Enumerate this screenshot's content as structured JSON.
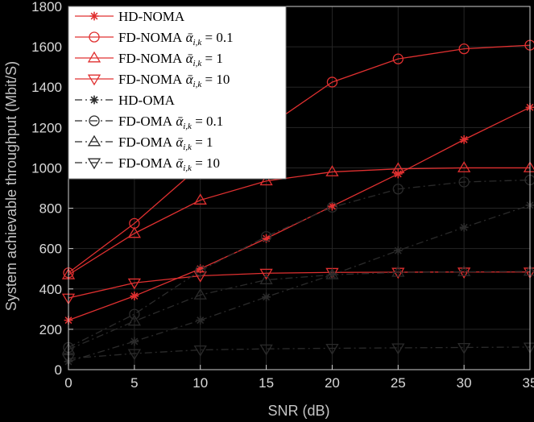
{
  "chart_data": {
    "type": "line",
    "xlabel": "SNR (dB)",
    "ylabel": "System achievable throughput (Mbit/S)",
    "xlim": [
      0,
      35
    ],
    "ylim": [
      0,
      1800
    ],
    "xticks": [
      0,
      5,
      10,
      15,
      20,
      25,
      30,
      35
    ],
    "yticks": [
      0,
      200,
      400,
      600,
      800,
      1000,
      1200,
      1400,
      1600,
      1800
    ],
    "legend_position": "top-left",
    "x": [
      0,
      5,
      10,
      15,
      20,
      25,
      30,
      35
    ],
    "series": [
      {
        "name": "HD-NOMA",
        "base": "HD-NOMA",
        "alpha": "",
        "color": "#e03030",
        "dash": "solid",
        "marker": "star",
        "values": [
          245,
          365,
          500,
          650,
          810,
          970,
          1140,
          1300
        ]
      },
      {
        "name": "FD-NOMA ᾱi,k = 0.1",
        "base": "FD-NOMA",
        "alpha": "0.1",
        "color": "#e03030",
        "dash": "solid",
        "marker": "circle",
        "values": [
          480,
          725,
          1010,
          1200,
          1425,
          1540,
          1590,
          1608
        ]
      },
      {
        "name": "FD-NOMA ᾱi,k = 1",
        "base": "FD-NOMA",
        "alpha": "1",
        "color": "#e03030",
        "dash": "solid",
        "marker": "triangle-up",
        "values": [
          470,
          675,
          840,
          935,
          980,
          995,
          1000,
          1000
        ]
      },
      {
        "name": "FD-NOMA ᾱi,k = 10",
        "base": "FD-NOMA",
        "alpha": "10",
        "color": "#e03030",
        "dash": "solid",
        "marker": "triangle-down",
        "values": [
          355,
          430,
          465,
          478,
          482,
          483,
          484,
          484
        ]
      },
      {
        "name": "HD-OMA",
        "base": "HD-OMA",
        "alpha": "",
        "color": "#2b2b2b",
        "dash": "dashdot",
        "marker": "star",
        "values": [
          40,
          140,
          245,
          360,
          470,
          590,
          705,
          815
        ]
      },
      {
        "name": "FD-OMA ᾱi,k = 0.1",
        "base": "FD-OMA",
        "alpha": "0.1",
        "color": "#2b2b2b",
        "dash": "dashdot",
        "marker": "circle",
        "values": [
          110,
          275,
          490,
          660,
          805,
          895,
          930,
          940
        ]
      },
      {
        "name": "FD-OMA ᾱi,k = 1",
        "base": "FD-OMA",
        "alpha": "1",
        "color": "#2b2b2b",
        "dash": "dashdot",
        "marker": "triangle-up",
        "values": [
          100,
          240,
          370,
          445,
          470,
          482,
          485,
          487
        ]
      },
      {
        "name": "FD-OMA ᾱi,k = 10",
        "base": "FD-OMA",
        "alpha": "10",
        "color": "#2b2b2b",
        "dash": "dashdot",
        "marker": "triangle-down",
        "values": [
          55,
          80,
          98,
          103,
          106,
          108,
          110,
          112
        ]
      }
    ]
  }
}
